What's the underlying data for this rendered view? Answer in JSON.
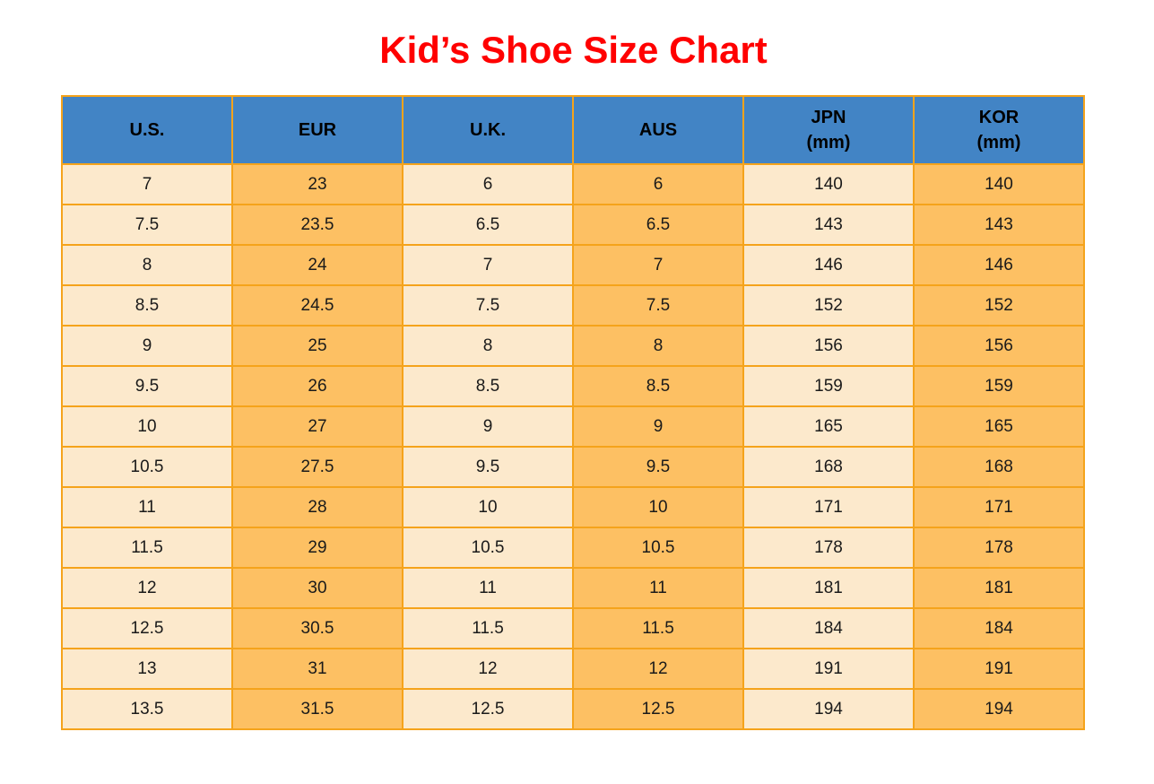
{
  "title": "Kid’s Shoe Size Chart",
  "colors": {
    "title_red": "#FF0000",
    "header_blue": "#4284C5",
    "col_cream": "#FCE9CC",
    "col_orange": "#FDC063",
    "grid_orange": "#F5A31B",
    "text_dark": "#1A1A1A"
  },
  "chart_data": {
    "type": "table",
    "title": "Kid’s Shoe Size Chart",
    "columns": [
      "U.S.",
      "EUR",
      "U.K.",
      "AUS",
      "JPN (mm)",
      "KOR (mm)"
    ],
    "header_lines": [
      [
        "U.S."
      ],
      [
        "EUR"
      ],
      [
        "U.K."
      ],
      [
        "AUS"
      ],
      [
        "JPN",
        "(mm)"
      ],
      [
        "KOR",
        "(mm)"
      ]
    ],
    "rows": [
      [
        "7",
        "23",
        "6",
        "6",
        "140",
        "140"
      ],
      [
        "7.5",
        "23.5",
        "6.5",
        "6.5",
        "143",
        "143"
      ],
      [
        "8",
        "24",
        "7",
        "7",
        "146",
        "146"
      ],
      [
        "8.5",
        "24.5",
        "7.5",
        "7.5",
        "152",
        "152"
      ],
      [
        "9",
        "25",
        "8",
        "8",
        "156",
        "156"
      ],
      [
        "9.5",
        "26",
        "8.5",
        "8.5",
        "159",
        "159"
      ],
      [
        "10",
        "27",
        "9",
        "9",
        "165",
        "165"
      ],
      [
        "10.5",
        "27.5",
        "9.5",
        "9.5",
        "168",
        "168"
      ],
      [
        "11",
        "28",
        "10",
        "10",
        "171",
        "171"
      ],
      [
        "11.5",
        "29",
        "10.5",
        "10.5",
        "178",
        "178"
      ],
      [
        "12",
        "30",
        "11",
        "11",
        "181",
        "181"
      ],
      [
        "12.5",
        "30.5",
        "11.5",
        "11.5",
        "184",
        "184"
      ],
      [
        "13",
        "31",
        "12",
        "12",
        "191",
        "191"
      ],
      [
        "13.5",
        "31.5",
        "12.5",
        "12.5",
        "194",
        "194"
      ]
    ]
  }
}
